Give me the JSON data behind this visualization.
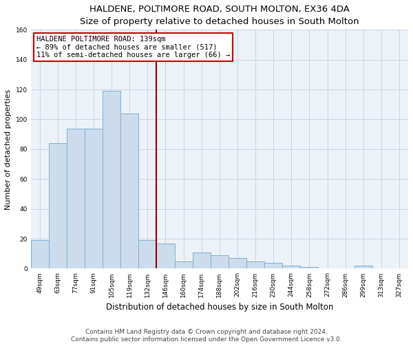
{
  "title": "HALDENE, POLTIMORE ROAD, SOUTH MOLTON, EX36 4DA",
  "subtitle": "Size of property relative to detached houses in South Molton",
  "xlabel": "Distribution of detached houses by size in South Molton",
  "ylabel": "Number of detached properties",
  "bin_labels": [
    "49sqm",
    "63sqm",
    "77sqm",
    "91sqm",
    "105sqm",
    "119sqm",
    "132sqm",
    "146sqm",
    "160sqm",
    "174sqm",
    "188sqm",
    "202sqm",
    "216sqm",
    "230sqm",
    "244sqm",
    "258sqm",
    "272sqm",
    "286sqm",
    "299sqm",
    "313sqm",
    "327sqm"
  ],
  "bar_heights": [
    19,
    84,
    94,
    94,
    119,
    104,
    19,
    17,
    5,
    11,
    9,
    7,
    5,
    4,
    2,
    1,
    0,
    0,
    2,
    0,
    0
  ],
  "bar_color": "#cddcec",
  "bar_edge_color": "#7aafd4",
  "vline_color": "#8b0000",
  "ylim": [
    0,
    160
  ],
  "yticks": [
    0,
    20,
    40,
    60,
    80,
    100,
    120,
    140,
    160
  ],
  "annotation_title": "HALDENE POLTIMORE ROAD: 139sqm",
  "annotation_line1": "← 89% of detached houses are smaller (517)",
  "annotation_line2": "11% of semi-detached houses are larger (66) →",
  "annotation_box_edge": "#cc0000",
  "footer_line1": "Contains HM Land Registry data © Crown copyright and database right 2024.",
  "footer_line2": "Contains public sector information licensed under the Open Government Licence v3.0.",
  "background_color": "#edf2f8",
  "grid_color": "#c8d4e4",
  "title_fontsize": 9.5,
  "subtitle_fontsize": 8.5,
  "ylabel_fontsize": 8,
  "xlabel_fontsize": 8.5,
  "tick_fontsize": 6.5,
  "annotation_fontsize": 7.5,
  "footer_fontsize": 6.5
}
